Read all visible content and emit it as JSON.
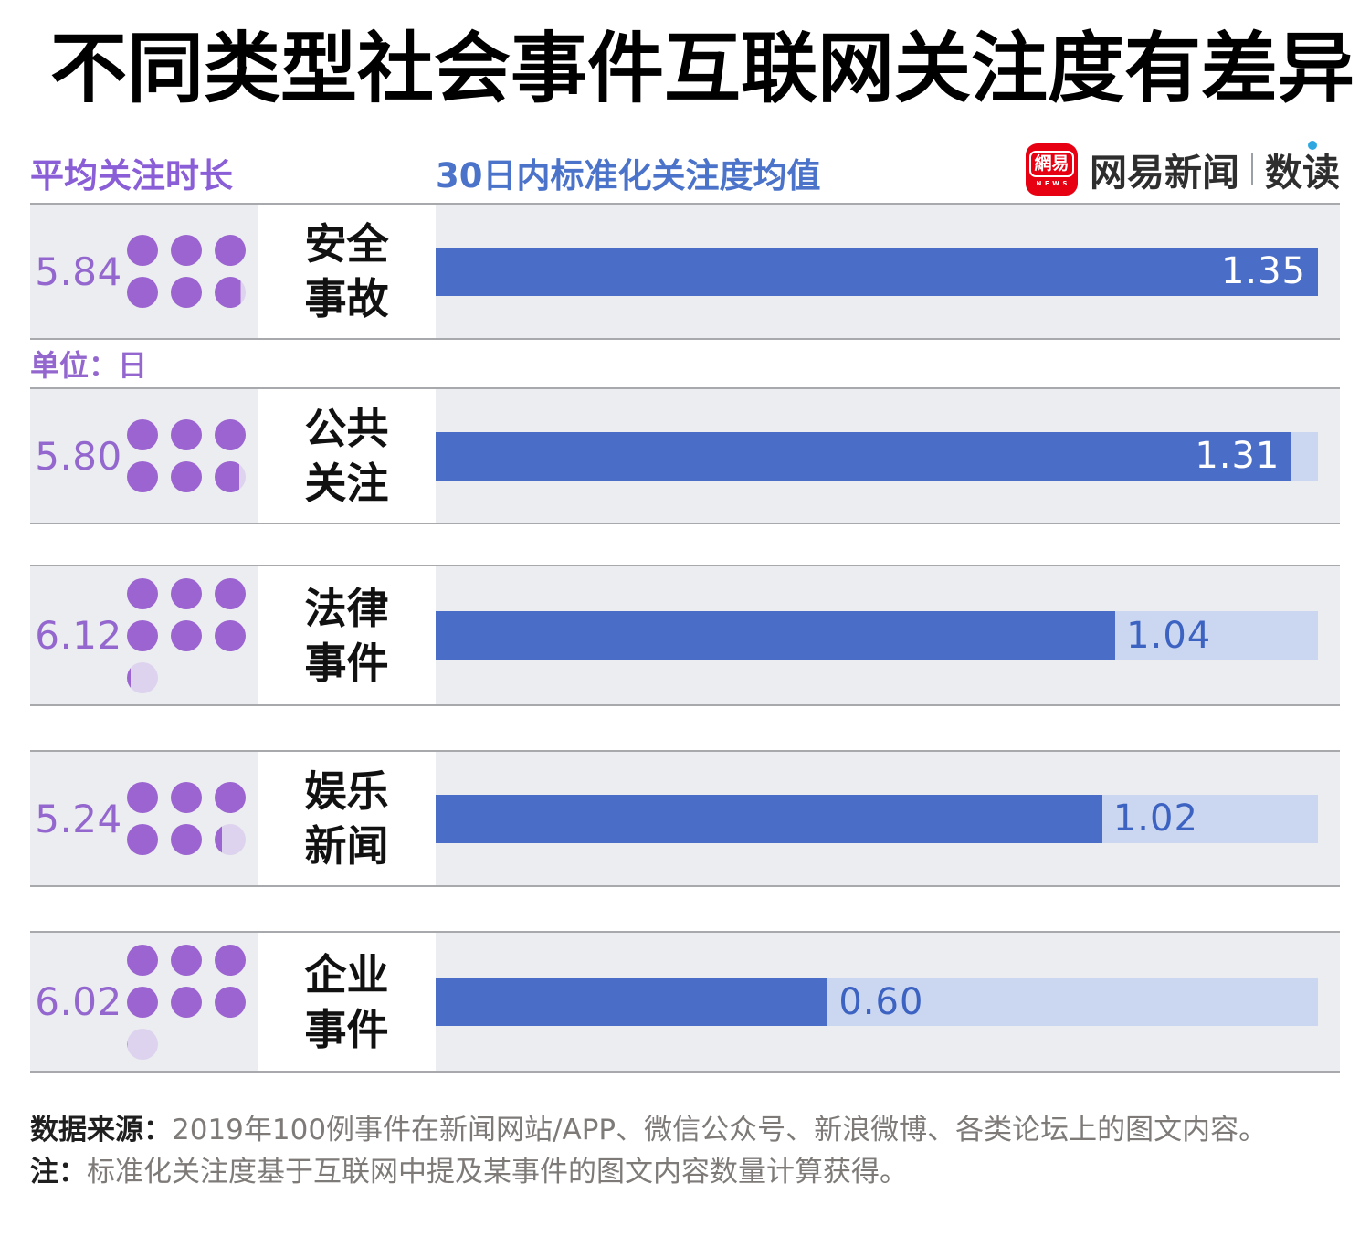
{
  "title": "不同类型社会事件互联网关注度有差异",
  "legend": {
    "left_label": "平均关注时长",
    "right_label": "30日内标准化关注度均值",
    "unit_label": "单位：日"
  },
  "logo": {
    "icon_text": "網易",
    "icon_sub": "NEWS",
    "name": "网易新闻",
    "sub": "数读"
  },
  "rows": [
    {
      "duration": "5.84",
      "cat1": "安全",
      "cat2": "事故",
      "value": "1.35",
      "value_num": 1.35,
      "dots": [
        [
          1,
          1,
          1
        ],
        [
          1,
          1,
          0.84
        ]
      ],
      "label_inside": true
    },
    {
      "duration": "5.80",
      "cat1": "公共",
      "cat2": "关注",
      "value": "1.31",
      "value_num": 1.31,
      "dots": [
        [
          1,
          1,
          1
        ],
        [
          1,
          1,
          0.8
        ]
      ],
      "label_inside": true
    },
    {
      "duration": "6.12",
      "cat1": "法律",
      "cat2": "事件",
      "value": "1.04",
      "value_num": 1.04,
      "dots": [
        [
          1,
          1,
          1
        ],
        [
          1,
          1,
          1
        ],
        [
          0.12
        ]
      ],
      "label_inside": false
    },
    {
      "duration": "5.24",
      "cat1": "娱乐",
      "cat2": "新闻",
      "value": "1.02",
      "value_num": 1.02,
      "dots": [
        [
          1,
          1,
          1
        ],
        [
          1,
          1,
          0.24
        ]
      ],
      "label_inside": false
    },
    {
      "duration": "6.02",
      "cat1": "企业",
      "cat2": "事件",
      "value": "0.60",
      "value_num": 0.6,
      "dots": [
        [
          1,
          1,
          1
        ],
        [
          1,
          1,
          1
        ],
        [
          0.02
        ]
      ],
      "label_inside": false
    }
  ],
  "chart_data": {
    "type": "bar",
    "orientation": "horizontal",
    "categories": [
      "安全事故",
      "公共关注",
      "法律事件",
      "娱乐新闻",
      "企业事件"
    ],
    "series": [
      {
        "name": "平均关注时长（单位：日）",
        "values": [
          5.84,
          5.8,
          6.12,
          5.24,
          6.02
        ]
      },
      {
        "name": "30日内标准化关注度均值",
        "values": [
          1.35,
          1.31,
          1.04,
          1.02,
          0.6
        ]
      }
    ],
    "xlim": [
      0,
      1.35
    ],
    "grid": false,
    "legend_position": "top"
  },
  "colors": {
    "bar_blue": "#4a6dc7",
    "bar_track_light": "#cbd7f0",
    "value_label_outside": "#3c62c2",
    "dot_purple": "#9b64d0",
    "dot_light_purple": "#ded3ee",
    "number_purple": "#9467cf",
    "legend_purple": "#8a5ed6",
    "legend_blue": "#4a73c9",
    "row_background": "#ebedf1",
    "row_border": "#a8a9ad",
    "logo_red": "#e60012",
    "logo_accent_blue": "#2ea7e0"
  },
  "footer": {
    "source_label": "数据来源：",
    "source_text": "2019年100例事件在新闻网站/APP、微信公众号、新浪微博、各类论坛上的图文内容。",
    "note_label": "注：",
    "note_text": "标准化关注度基于互联网中提及某事件的图文内容数量计算获得。"
  }
}
